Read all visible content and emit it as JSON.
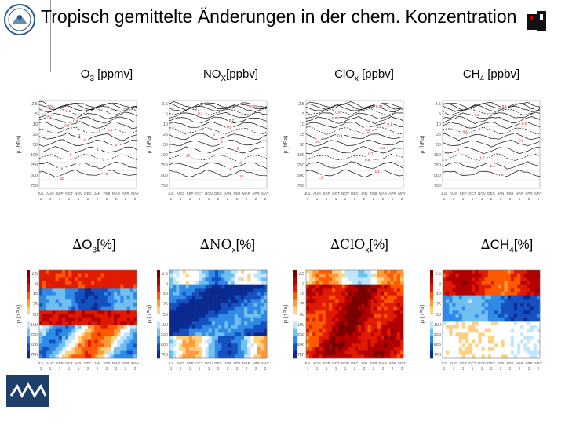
{
  "title": "Tropisch gemittelte Änderungen in der chem. Konzentration",
  "top_headers": [
    {
      "main": "O",
      "sub": "3",
      "rest": " [ppmv]"
    },
    {
      "main": "NO",
      "sub": "X",
      "rest": "[ppbv]"
    },
    {
      "main": "ClO",
      "sub": "x",
      "rest": " [ppbv]"
    },
    {
      "main": "CH",
      "sub": "4",
      "rest": " [ppbv]"
    }
  ],
  "bottom_headers": [
    {
      "delta": "∆",
      "main": "O",
      "sub": "3",
      "rest": "[%]"
    },
    {
      "delta": "∆",
      "main": "NO",
      "sub": "x",
      "rest": "[%]"
    },
    {
      "delta": "∆",
      "main": "ClO",
      "sub": "x",
      "rest": "[%]"
    },
    {
      "delta": "∆",
      "main": "CH",
      "sub": "4",
      "rest": "[%]"
    }
  ],
  "axis": {
    "ylabel": "p (hPa)",
    "yticks": [
      "2.5",
      "5",
      "10",
      "25",
      "50",
      "100",
      "250",
      "500",
      "750"
    ],
    "months": [
      "JUL",
      "AUG",
      "SEP",
      "OCT",
      "NOV",
      "DEC",
      "JAN",
      "FEB",
      "MAR",
      "APR",
      "MAY"
    ],
    "years": [
      "1",
      "1",
      "1",
      "1",
      "1",
      "2",
      "2",
      "2",
      "2",
      "2",
      "2"
    ]
  },
  "chart_data": [
    {
      "type": "heatmap",
      "variable": "O3",
      "style": "contour-lines",
      "contour_labels": [
        "0.01",
        "0.1",
        "0.2",
        "0.4",
        "0.6",
        "0.8",
        "1",
        "2",
        "3",
        "4",
        "5",
        "6",
        "7",
        "8",
        "9",
        "10"
      ]
    },
    {
      "type": "heatmap",
      "variable": "NOx",
      "style": "contour-lines",
      "contour_labels": [
        "0.05",
        "0.1",
        "0.2",
        "0.5",
        "1",
        "2",
        "5",
        "10",
        "12",
        "14",
        "16"
      ]
    },
    {
      "type": "heatmap",
      "variable": "ClOx",
      "style": "contour-lines",
      "contour_labels": [
        "0.01",
        "0.02",
        "0.05",
        "0.1",
        "0.2",
        "0.4",
        "0.5",
        "0.6",
        "0.7",
        "0.8",
        "1",
        "1.1",
        "1.2"
      ]
    },
    {
      "type": "heatmap",
      "variable": "CH4",
      "style": "contour-lines",
      "contour_labels": [
        "0.1",
        "0.2",
        "0.4",
        "0.6",
        "0.8",
        "1",
        "1.2",
        "1.4",
        "1.6"
      ]
    },
    {
      "type": "heatmap",
      "variable": "ΔO3",
      "style": "filled-contour",
      "colormap": "blue-white-red"
    },
    {
      "type": "heatmap",
      "variable": "ΔNOx",
      "style": "filled-contour",
      "colormap": "blue-white-red"
    },
    {
      "type": "heatmap",
      "variable": "ΔClOx",
      "style": "filled-contour",
      "colormap": "blue-white-red"
    },
    {
      "type": "heatmap",
      "variable": "ΔCH4",
      "style": "filled-contour",
      "colormap": "blue-white-red"
    }
  ],
  "colors": {
    "colorbar": [
      "#7a0000",
      "#b20000",
      "#e01a00",
      "#ff5a00",
      "#ff9a3a",
      "#ffd080",
      "#ffffff",
      "#bfe6ff",
      "#70bff0",
      "#2e8ae6",
      "#1450c0",
      "#0a2a90"
    ],
    "line": "#111111",
    "grid": "#cfcfcf"
  }
}
